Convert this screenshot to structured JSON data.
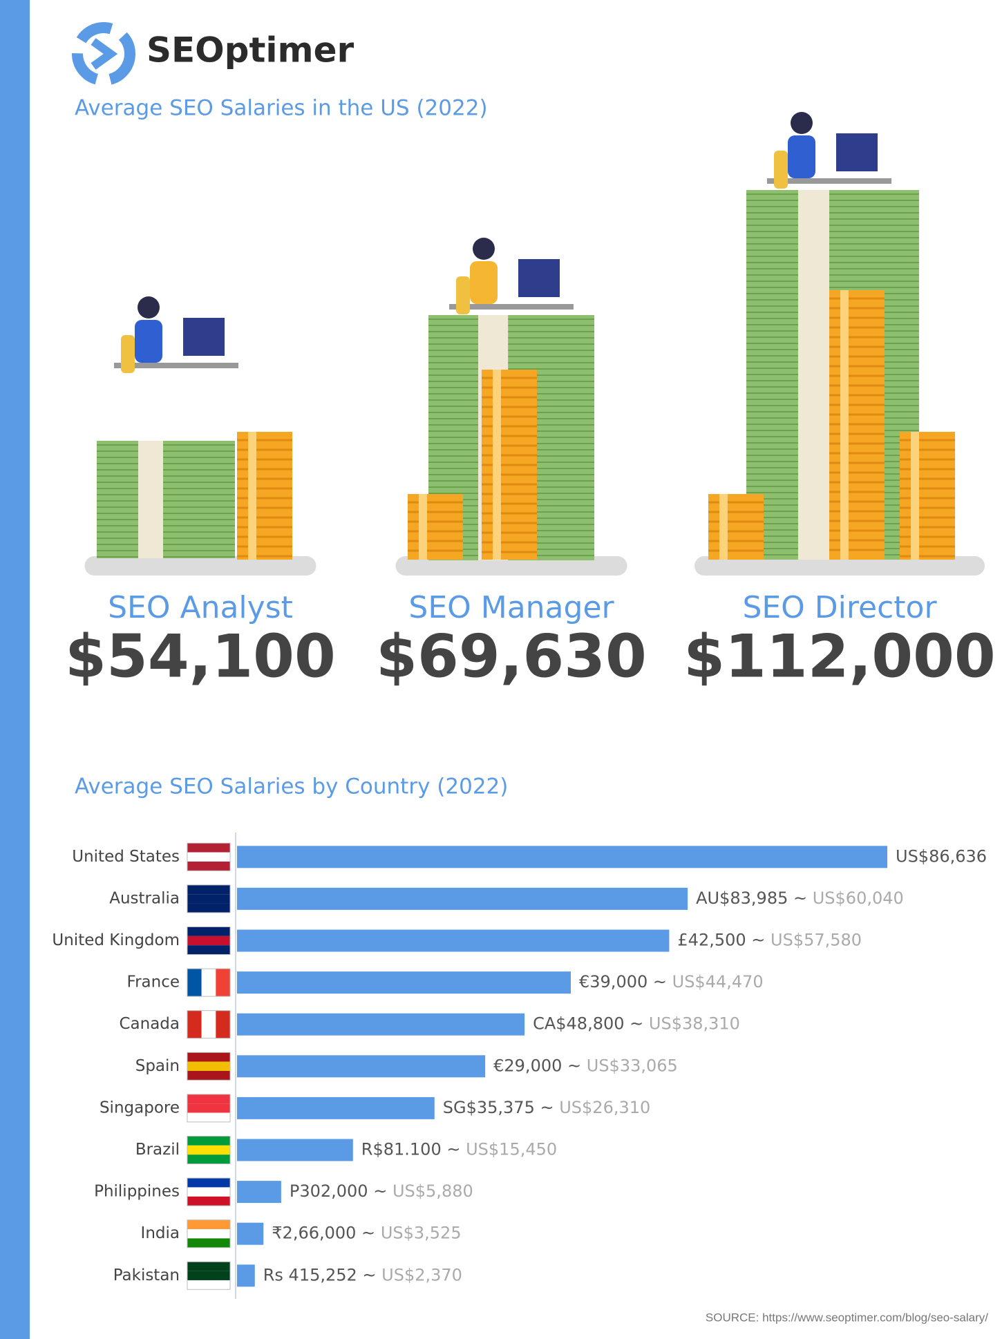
{
  "header": {
    "logo": "SEOptimer",
    "title": "Average SEO Salaries in the US (2022)"
  },
  "jobs": [
    {
      "title": "SEO Analyst",
      "salary": "$54,100"
    },
    {
      "title": "SEO Manager",
      "salary": "$69,630"
    },
    {
      "title": "SEO Director",
      "salary": "$112,000"
    }
  ],
  "chart_data": {
    "type": "hbar",
    "title": "Average SEO Salaries by Country (2022)",
    "categories": [
      "United States",
      "Australia",
      "United Kingdom",
      "France",
      "Canada",
      "Spain",
      "Singapore",
      "Brazil",
      "Philippines",
      "India",
      "Pakistan"
    ],
    "values": [
      86636,
      60040,
      57580,
      44470,
      38310,
      33065,
      26310,
      15450,
      5880,
      3525,
      2370
    ],
    "value_labels": [
      "US$86,636",
      "US$60,040",
      "US$57,580",
      "US$44,470",
      "US$38,310",
      "US$33,065",
      "US$26,310",
      "US$15,450",
      "US$5,880",
      "US$3,525",
      "US$2,370"
    ],
    "local_labels": [
      null,
      "AU$83,985 ~",
      "£42,500 ~",
      "€39,000 ~",
      "CA$48,800 ~",
      "€29,000 ~",
      "SG$35,375 ~",
      "R$81.100 ~",
      "P302,000 ~",
      "₹2,66,000 ~",
      "Rs 415,252 ~"
    ],
    "color": "#5b9be6"
  },
  "footer": {
    "source": "SOURCE: https://www.seoptimer.com/blog/seo-salary/"
  }
}
